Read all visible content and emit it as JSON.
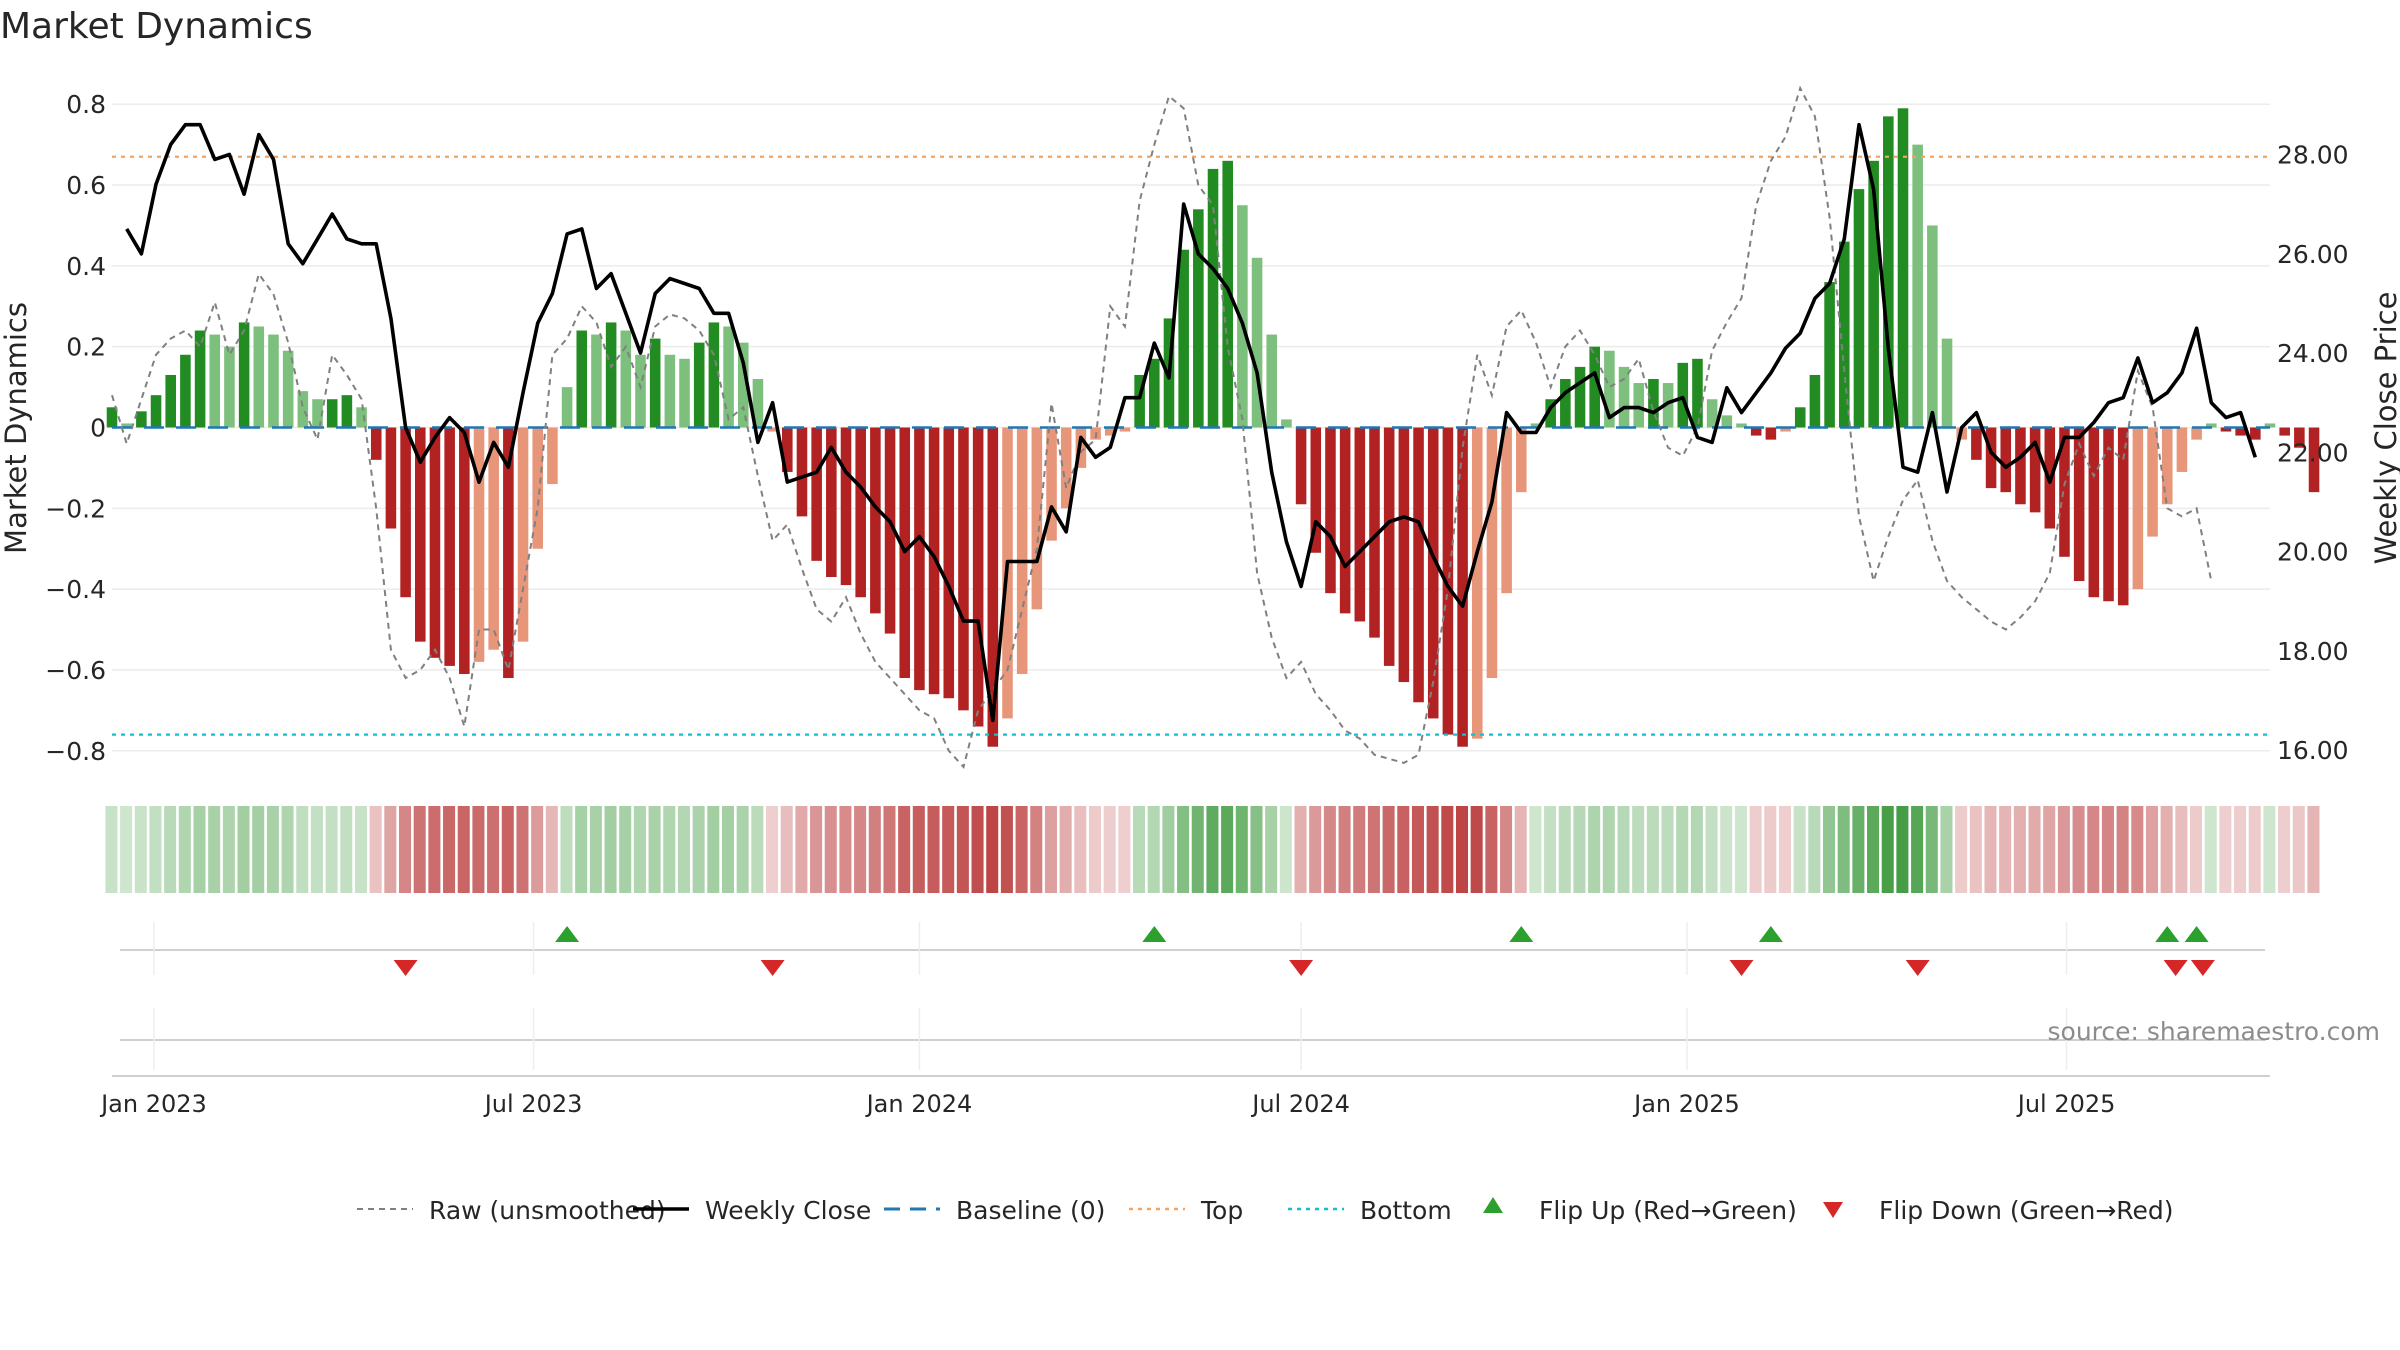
{
  "title": "Market Dynamics",
  "source": "source: sharemaestro.com",
  "colors": {
    "strong_green": "#228b22",
    "light_green": "#7dbf7d",
    "strong_red": "#b22222",
    "light_red": "#e8967a",
    "raw": "#808080",
    "close": "#000000",
    "baseline": "#1f77b4",
    "top": "#f4a460",
    "bottom": "#17becf",
    "flip_up": "#2ca02c",
    "flip_down": "#d62728"
  },
  "legend": [
    {
      "key": "raw",
      "label": "Raw (unsmoothed)"
    },
    {
      "key": "close",
      "label": "Weekly Close"
    },
    {
      "key": "baseline",
      "label": "Baseline (0)"
    },
    {
      "key": "top",
      "label": "Top"
    },
    {
      "key": "bottom",
      "label": "Bottom"
    },
    {
      "key": "flip_up",
      "label": "Flip Up (Red→Green)"
    },
    {
      "key": "flip_down",
      "label": "Flip Down (Green→Red)"
    }
  ],
  "chart_data": {
    "type": "bar",
    "title": "Market Dynamics",
    "ylabel": "Market Dynamics",
    "y2label": "Weekly Close Price",
    "ylim": [
      -0.86,
      0.86
    ],
    "y2lim": [
      15.5,
      29.5
    ],
    "yticks": [
      {
        "v": 0.8,
        "t": "0.8"
      },
      {
        "v": 0.6,
        "t": "0.6"
      },
      {
        "v": 0.4,
        "t": "0.4"
      },
      {
        "v": 0.2,
        "t": "0.2"
      },
      {
        "v": 0,
        "t": "0"
      },
      {
        "v": -0.2,
        "t": "−0.2"
      },
      {
        "v": -0.4,
        "t": "−0.4"
      },
      {
        "v": -0.6,
        "t": "−0.6"
      },
      {
        "v": -0.8,
        "t": "−0.8"
      }
    ],
    "y2ticks": [
      {
        "v": 28,
        "t": "28.00"
      },
      {
        "v": 26,
        "t": "26.00"
      },
      {
        "v": 24,
        "t": "24.00"
      },
      {
        "v": 22,
        "t": "22.00"
      },
      {
        "v": 20,
        "t": "20.00"
      },
      {
        "v": 18,
        "t": "18.00"
      },
      {
        "v": 16,
        "t": "16.00"
      }
    ],
    "xrange": [
      "2022-12-12",
      "2025-10-06"
    ],
    "xticks": [
      {
        "d": "2023-01-01",
        "t": "Jan 2023"
      },
      {
        "d": "2023-07-01",
        "t": "Jul 2023"
      },
      {
        "d": "2024-01-01",
        "t": "Jan 2024"
      },
      {
        "d": "2024-07-01",
        "t": "Jul 2024"
      },
      {
        "d": "2025-01-01",
        "t": "Jan 2025"
      },
      {
        "d": "2025-07-01",
        "t": "Jul 2025"
      }
    ],
    "top_level": 0.67,
    "bottom_level": -0.76,
    "baseline": 0,
    "bars_start": "2022-12-12",
    "bar_interval_days": 7,
    "bars": [
      0.05,
      0.01,
      0.04,
      0.08,
      0.13,
      0.18,
      0.24,
      0.23,
      0.2,
      0.26,
      0.25,
      0.23,
      0.19,
      0.09,
      0.07,
      0.07,
      0.08,
      0.05,
      -0.08,
      -0.25,
      -0.42,
      -0.53,
      -0.57,
      -0.59,
      -0.61,
      -0.58,
      -0.55,
      -0.62,
      -0.53,
      -0.3,
      -0.14,
      0.1,
      0.24,
      0.23,
      0.26,
      0.24,
      0.18,
      0.22,
      0.18,
      0.17,
      0.21,
      0.26,
      0.25,
      0.21,
      0.12,
      -0.01,
      -0.11,
      -0.22,
      -0.33,
      -0.37,
      -0.39,
      -0.42,
      -0.46,
      -0.51,
      -0.62,
      -0.65,
      -0.66,
      -0.67,
      -0.7,
      -0.74,
      -0.79,
      -0.72,
      -0.61,
      -0.45,
      -0.28,
      -0.2,
      -0.1,
      -0.03,
      -0.02,
      -0.01,
      0.13,
      0.17,
      0.27,
      0.44,
      0.54,
      0.64,
      0.66,
      0.55,
      0.42,
      0.23,
      0.02,
      -0.19,
      -0.31,
      -0.41,
      -0.46,
      -0.48,
      -0.52,
      -0.59,
      -0.63,
      -0.68,
      -0.72,
      -0.76,
      -0.79,
      -0.77,
      -0.62,
      -0.41,
      -0.16,
      0.01,
      0.07,
      0.12,
      0.15,
      0.2,
      0.19,
      0.15,
      0.11,
      0.12,
      0.11,
      0.16,
      0.17,
      0.07,
      0.03,
      0.01,
      -0.02,
      -0.03,
      -0.01,
      0.05,
      0.13,
      0.36,
      0.46,
      0.59,
      0.66,
      0.77,
      0.79,
      0.7,
      0.5,
      0.22,
      -0.03,
      -0.08,
      -0.15,
      -0.16,
      -0.19,
      -0.21,
      -0.25,
      -0.32,
      -0.38,
      -0.42,
      -0.43,
      -0.44,
      -0.4,
      -0.27,
      -0.19,
      -0.11,
      -0.03,
      0.01,
      -0.01,
      -0.02,
      -0.03,
      0.01,
      -0.02,
      -0.05,
      -0.16
    ],
    "raw": [
      0.08,
      -0.04,
      0.07,
      0.18,
      0.22,
      0.24,
      0.2,
      0.31,
      0.18,
      0.24,
      0.38,
      0.33,
      0.21,
      0.05,
      -0.03,
      0.18,
      0.13,
      0.07,
      -0.2,
      -0.55,
      -0.62,
      -0.6,
      -0.55,
      -0.62,
      -0.74,
      -0.5,
      -0.5,
      -0.6,
      -0.4,
      -0.2,
      0.18,
      0.22,
      0.3,
      0.26,
      0.15,
      0.2,
      0.1,
      0.25,
      0.28,
      0.27,
      0.24,
      0.18,
      0.02,
      0.05,
      -0.12,
      -0.28,
      -0.24,
      -0.35,
      -0.45,
      -0.48,
      -0.42,
      -0.51,
      -0.58,
      -0.62,
      -0.66,
      -0.7,
      -0.72,
      -0.8,
      -0.84,
      -0.7,
      -0.65,
      -0.6,
      -0.45,
      -0.3,
      0.06,
      -0.15,
      -0.06,
      -0.03,
      0.3,
      0.25,
      0.56,
      0.7,
      0.82,
      0.79,
      0.6,
      0.55,
      0.2,
      0.02,
      -0.36,
      -0.52,
      -0.62,
      -0.58,
      -0.66,
      -0.7,
      -0.75,
      -0.77,
      -0.81,
      -0.82,
      -0.83,
      -0.81,
      -0.63,
      -0.4,
      -0.05,
      0.18,
      0.08,
      0.25,
      0.29,
      0.21,
      0.1,
      0.2,
      0.24,
      0.18,
      0.1,
      0.12,
      0.17,
      0.04,
      -0.05,
      -0.07,
      0.0,
      0.19,
      0.26,
      0.32,
      0.55,
      0.66,
      0.72,
      0.84,
      0.77,
      0.52,
      0.14,
      -0.22,
      -0.38,
      -0.27,
      -0.18,
      -0.13,
      -0.28,
      -0.38,
      -0.42,
      -0.45,
      -0.48,
      -0.5,
      -0.47,
      -0.43,
      -0.36,
      -0.14,
      -0.04,
      -0.12,
      -0.05,
      -0.08,
      0.14,
      0.05,
      -0.2,
      -0.22,
      -0.2,
      -0.38
    ],
    "close_start": "2022-12-19",
    "close": [
      26.5,
      26.0,
      27.4,
      28.2,
      28.6,
      28.6,
      27.9,
      28.0,
      27.2,
      28.4,
      27.9,
      26.2,
      25.8,
      26.3,
      26.8,
      26.3,
      26.2,
      26.2,
      24.7,
      22.5,
      21.8,
      22.3,
      22.7,
      22.4,
      21.4,
      22.2,
      21.7,
      23.2,
      24.6,
      25.2,
      26.4,
      26.5,
      25.3,
      25.6,
      24.8,
      24.0,
      25.2,
      25.5,
      25.4,
      25.3,
      24.8,
      24.8,
      23.8,
      22.2,
      23.0,
      21.4,
      21.5,
      21.6,
      22.1,
      21.6,
      21.3,
      20.9,
      20.6,
      20.0,
      20.3,
      19.9,
      19.3,
      18.6,
      18.6,
      16.6,
      19.8,
      19.8,
      19.8,
      20.9,
      20.4,
      22.3,
      21.9,
      22.1,
      23.1,
      23.1,
      24.2,
      23.5,
      27.0,
      26.0,
      25.7,
      25.3,
      24.6,
      23.6,
      21.6,
      20.2,
      19.3,
      20.6,
      20.3,
      19.7,
      20.0,
      20.3,
      20.6,
      20.7,
      20.6,
      19.9,
      19.3,
      18.9,
      20.0,
      21.0,
      22.8,
      22.4,
      22.4,
      22.9,
      23.2,
      23.4,
      23.6,
      22.7,
      22.9,
      22.9,
      22.8,
      23.0,
      23.1,
      22.3,
      22.2,
      23.3,
      22.8,
      23.2,
      23.6,
      24.1,
      24.4,
      25.1,
      25.4,
      26.3,
      28.6,
      27.3,
      24.1,
      21.7,
      21.6,
      22.8,
      21.2,
      22.5,
      22.8,
      22.0,
      21.7,
      21.9,
      22.2,
      21.4,
      22.3,
      22.3,
      22.6,
      23.0,
      23.1,
      23.9,
      23.0,
      23.2,
      23.6,
      24.5,
      23.0,
      22.7,
      22.8,
      21.9
    ],
    "flips_up": [
      "2023-07-17",
      "2024-04-22",
      "2024-10-14",
      "2025-02-10",
      "2025-08-18",
      "2025-09-01"
    ],
    "flips_down": [
      "2023-05-01",
      "2023-10-23",
      "2024-07-01",
      "2025-01-27",
      "2025-04-21",
      "2025-08-22",
      "2025-09-04"
    ],
    "flips_label": "",
    "sales_label": ""
  }
}
